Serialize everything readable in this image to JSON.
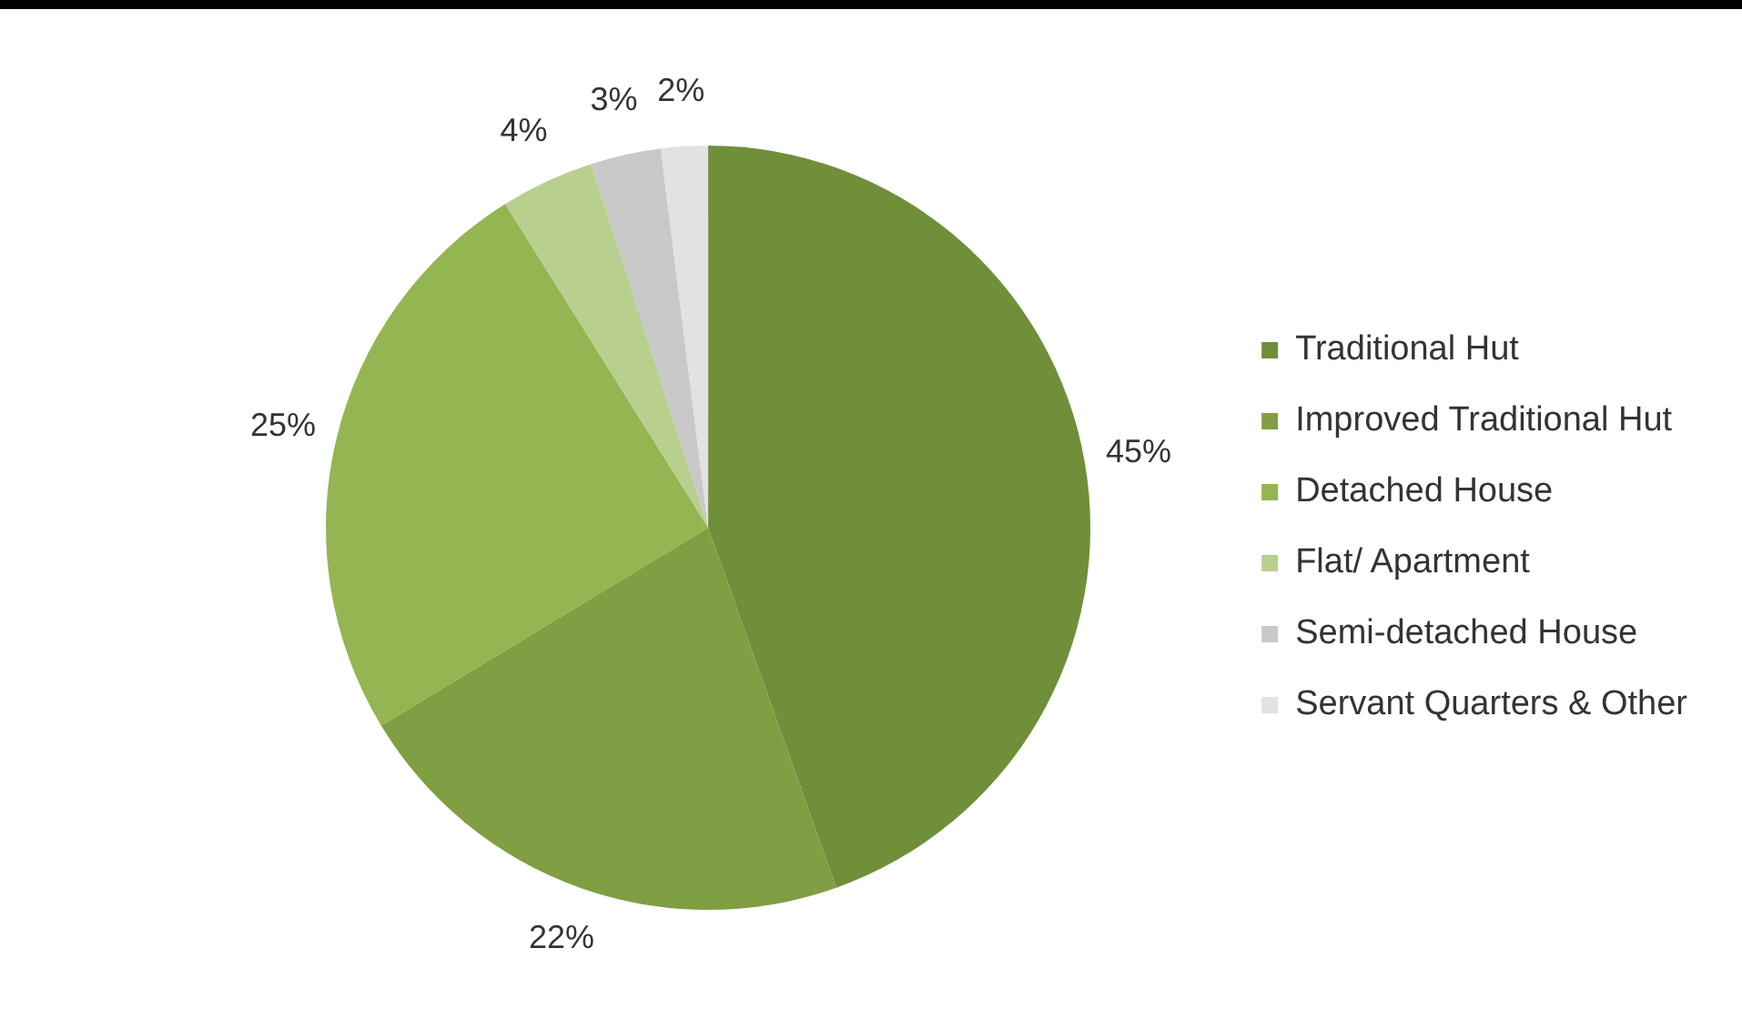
{
  "chart_data": {
    "type": "pie",
    "categories": [
      "Traditional Hut",
      "Improved Traditional Hut",
      "Detached House",
      "Flat/ Apartment",
      "Semi-detached House",
      "Servant Quarters & Other"
    ],
    "values": [
      45,
      22,
      25,
      4,
      3,
      2
    ],
    "value_labels": [
      "45%",
      "22%",
      "25%",
      "4%",
      "3%",
      "2%"
    ],
    "colors": [
      "#6f8f3a",
      "#7f9f42",
      "#93b552",
      "#b9cf8e",
      "#c9c9c9",
      "#e2e2e2"
    ],
    "legend": "right"
  }
}
